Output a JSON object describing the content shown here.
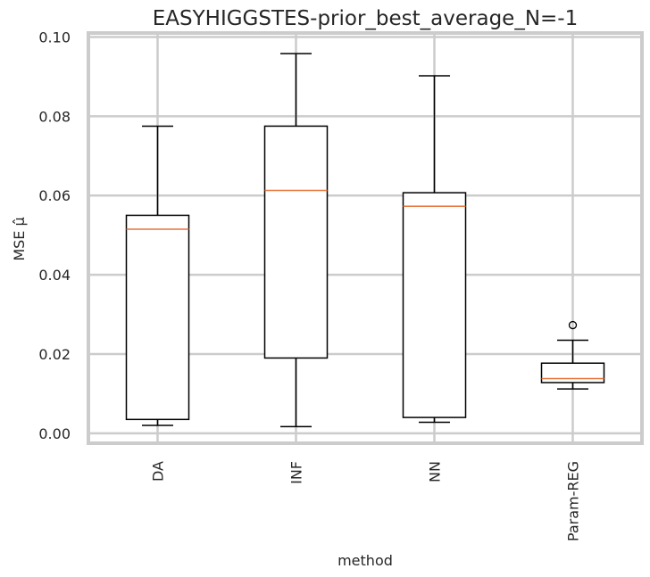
{
  "chart_data": {
    "type": "boxplot",
    "title": "EASYHIGGSTES-prior_best_average_N=-1",
    "xlabel": "method",
    "ylabel": "MSE μ̂",
    "ylim": [
      -0.0025,
      0.101
    ],
    "yticks": [
      "0.00",
      "0.02",
      "0.04",
      "0.06",
      "0.08",
      "0.10"
    ],
    "grid": true,
    "categories": [
      "DA",
      "INF",
      "NN",
      "Param-REG"
    ],
    "boxes": [
      {
        "name": "DA",
        "whisker_low": 0.002,
        "q1": 0.0035,
        "median": 0.0515,
        "q3": 0.055,
        "whisker_high": 0.0775,
        "outliers": []
      },
      {
        "name": "INF",
        "whisker_low": 0.0017,
        "q1": 0.019,
        "median": 0.0613,
        "q3": 0.0775,
        "whisker_high": 0.0958,
        "outliers": []
      },
      {
        "name": "NN",
        "whisker_low": 0.0028,
        "q1": 0.004,
        "median": 0.0573,
        "q3": 0.0607,
        "whisker_high": 0.0902,
        "outliers": []
      },
      {
        "name": "Param-REG",
        "whisker_low": 0.0112,
        "q1": 0.0128,
        "median": 0.0138,
        "q3": 0.0177,
        "whisker_high": 0.0235,
        "outliers": [
          0.0273
        ]
      }
    ],
    "colors": {
      "box": "#000000",
      "median": "#e8733a",
      "grid": "#cccccc",
      "frame": "#cccccc"
    }
  }
}
